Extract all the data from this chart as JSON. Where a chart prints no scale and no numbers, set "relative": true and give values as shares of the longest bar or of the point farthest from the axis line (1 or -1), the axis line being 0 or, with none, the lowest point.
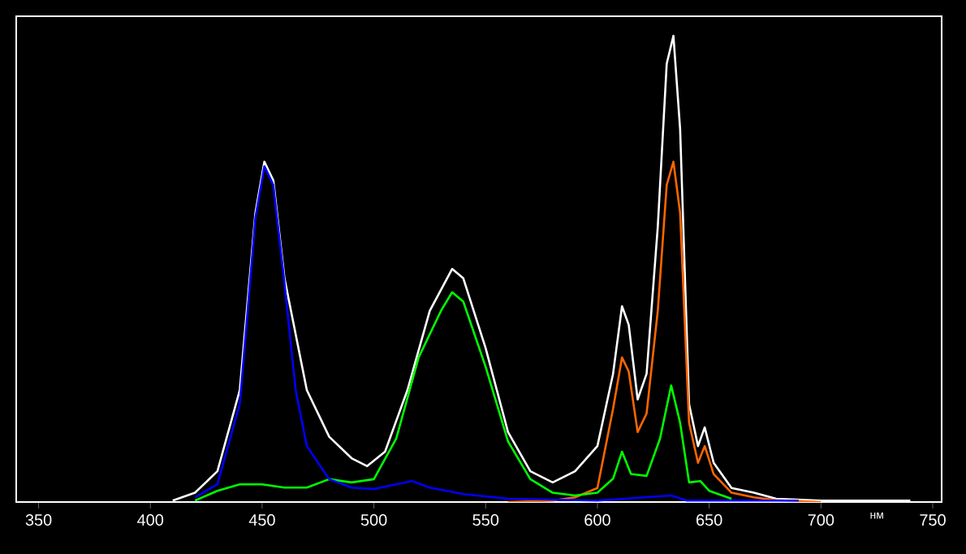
{
  "chart_data": {
    "type": "line",
    "xlabel": "нм",
    "relative": true,
    "xlim": [
      340,
      754
    ],
    "xticks": [
      350,
      400,
      450,
      500,
      550,
      600,
      650,
      700,
      750
    ],
    "series": [
      {
        "color": "#ffffff",
        "x": [
          410,
          420,
          430,
          440,
          447,
          451,
          455,
          460,
          470,
          480,
          490,
          497,
          505,
          515,
          525,
          535,
          540,
          550,
          560,
          570,
          580,
          590,
          600,
          607,
          611,
          614,
          618,
          622,
          627,
          631,
          634,
          637,
          641,
          645,
          648,
          652,
          660,
          670,
          680,
          700,
          740
        ],
        "values": [
          0.003,
          0.02,
          0.066,
          0.24,
          0.62,
          0.73,
          0.69,
          0.48,
          0.24,
          0.14,
          0.094,
          0.077,
          0.108,
          0.24,
          0.41,
          0.5,
          0.48,
          0.33,
          0.15,
          0.066,
          0.042,
          0.066,
          0.12,
          0.275,
          0.42,
          0.38,
          0.22,
          0.275,
          0.59,
          0.94,
          1.0,
          0.8,
          0.21,
          0.12,
          0.16,
          0.084,
          0.03,
          0.02,
          0.007,
          0.003,
          0.003
        ]
      },
      {
        "color": "#ff6600",
        "x": [
          560,
          580,
          590,
          600,
          607,
          611,
          614,
          618,
          622,
          627,
          631,
          634,
          637,
          641,
          645,
          648,
          652,
          660,
          670,
          680,
          700
        ],
        "values": [
          0.0,
          0.003,
          0.01,
          0.03,
          0.2,
          0.31,
          0.28,
          0.15,
          0.19,
          0.41,
          0.68,
          0.73,
          0.62,
          0.17,
          0.084,
          0.12,
          0.06,
          0.02,
          0.01,
          0.004,
          0.0
        ]
      },
      {
        "color": "#00ff00",
        "x": [
          420,
          430,
          440,
          450,
          460,
          470,
          480,
          490,
          500,
          510,
          520,
          530,
          535,
          540,
          550,
          560,
          570,
          580,
          590,
          600,
          607,
          611,
          615,
          622,
          628,
          633,
          637,
          641,
          646,
          650,
          660
        ],
        "values": [
          0.003,
          0.024,
          0.038,
          0.038,
          0.031,
          0.031,
          0.049,
          0.042,
          0.049,
          0.136,
          0.31,
          0.41,
          0.45,
          0.43,
          0.29,
          0.13,
          0.049,
          0.02,
          0.014,
          0.02,
          0.05,
          0.108,
          0.06,
          0.056,
          0.136,
          0.25,
          0.17,
          0.042,
          0.045,
          0.024,
          0.007
        ]
      },
      {
        "color": "#0000ff",
        "x": [
          420,
          430,
          440,
          447,
          451,
          455,
          460,
          465,
          470,
          480,
          490,
          500,
          510,
          517,
          525,
          540,
          560,
          600,
          633,
          640,
          690
        ],
        "values": [
          0.01,
          0.038,
          0.21,
          0.61,
          0.72,
          0.68,
          0.47,
          0.24,
          0.12,
          0.049,
          0.031,
          0.028,
          0.038,
          0.045,
          0.031,
          0.017,
          0.007,
          0.003,
          0.014,
          0.003,
          0.003
        ]
      }
    ]
  }
}
